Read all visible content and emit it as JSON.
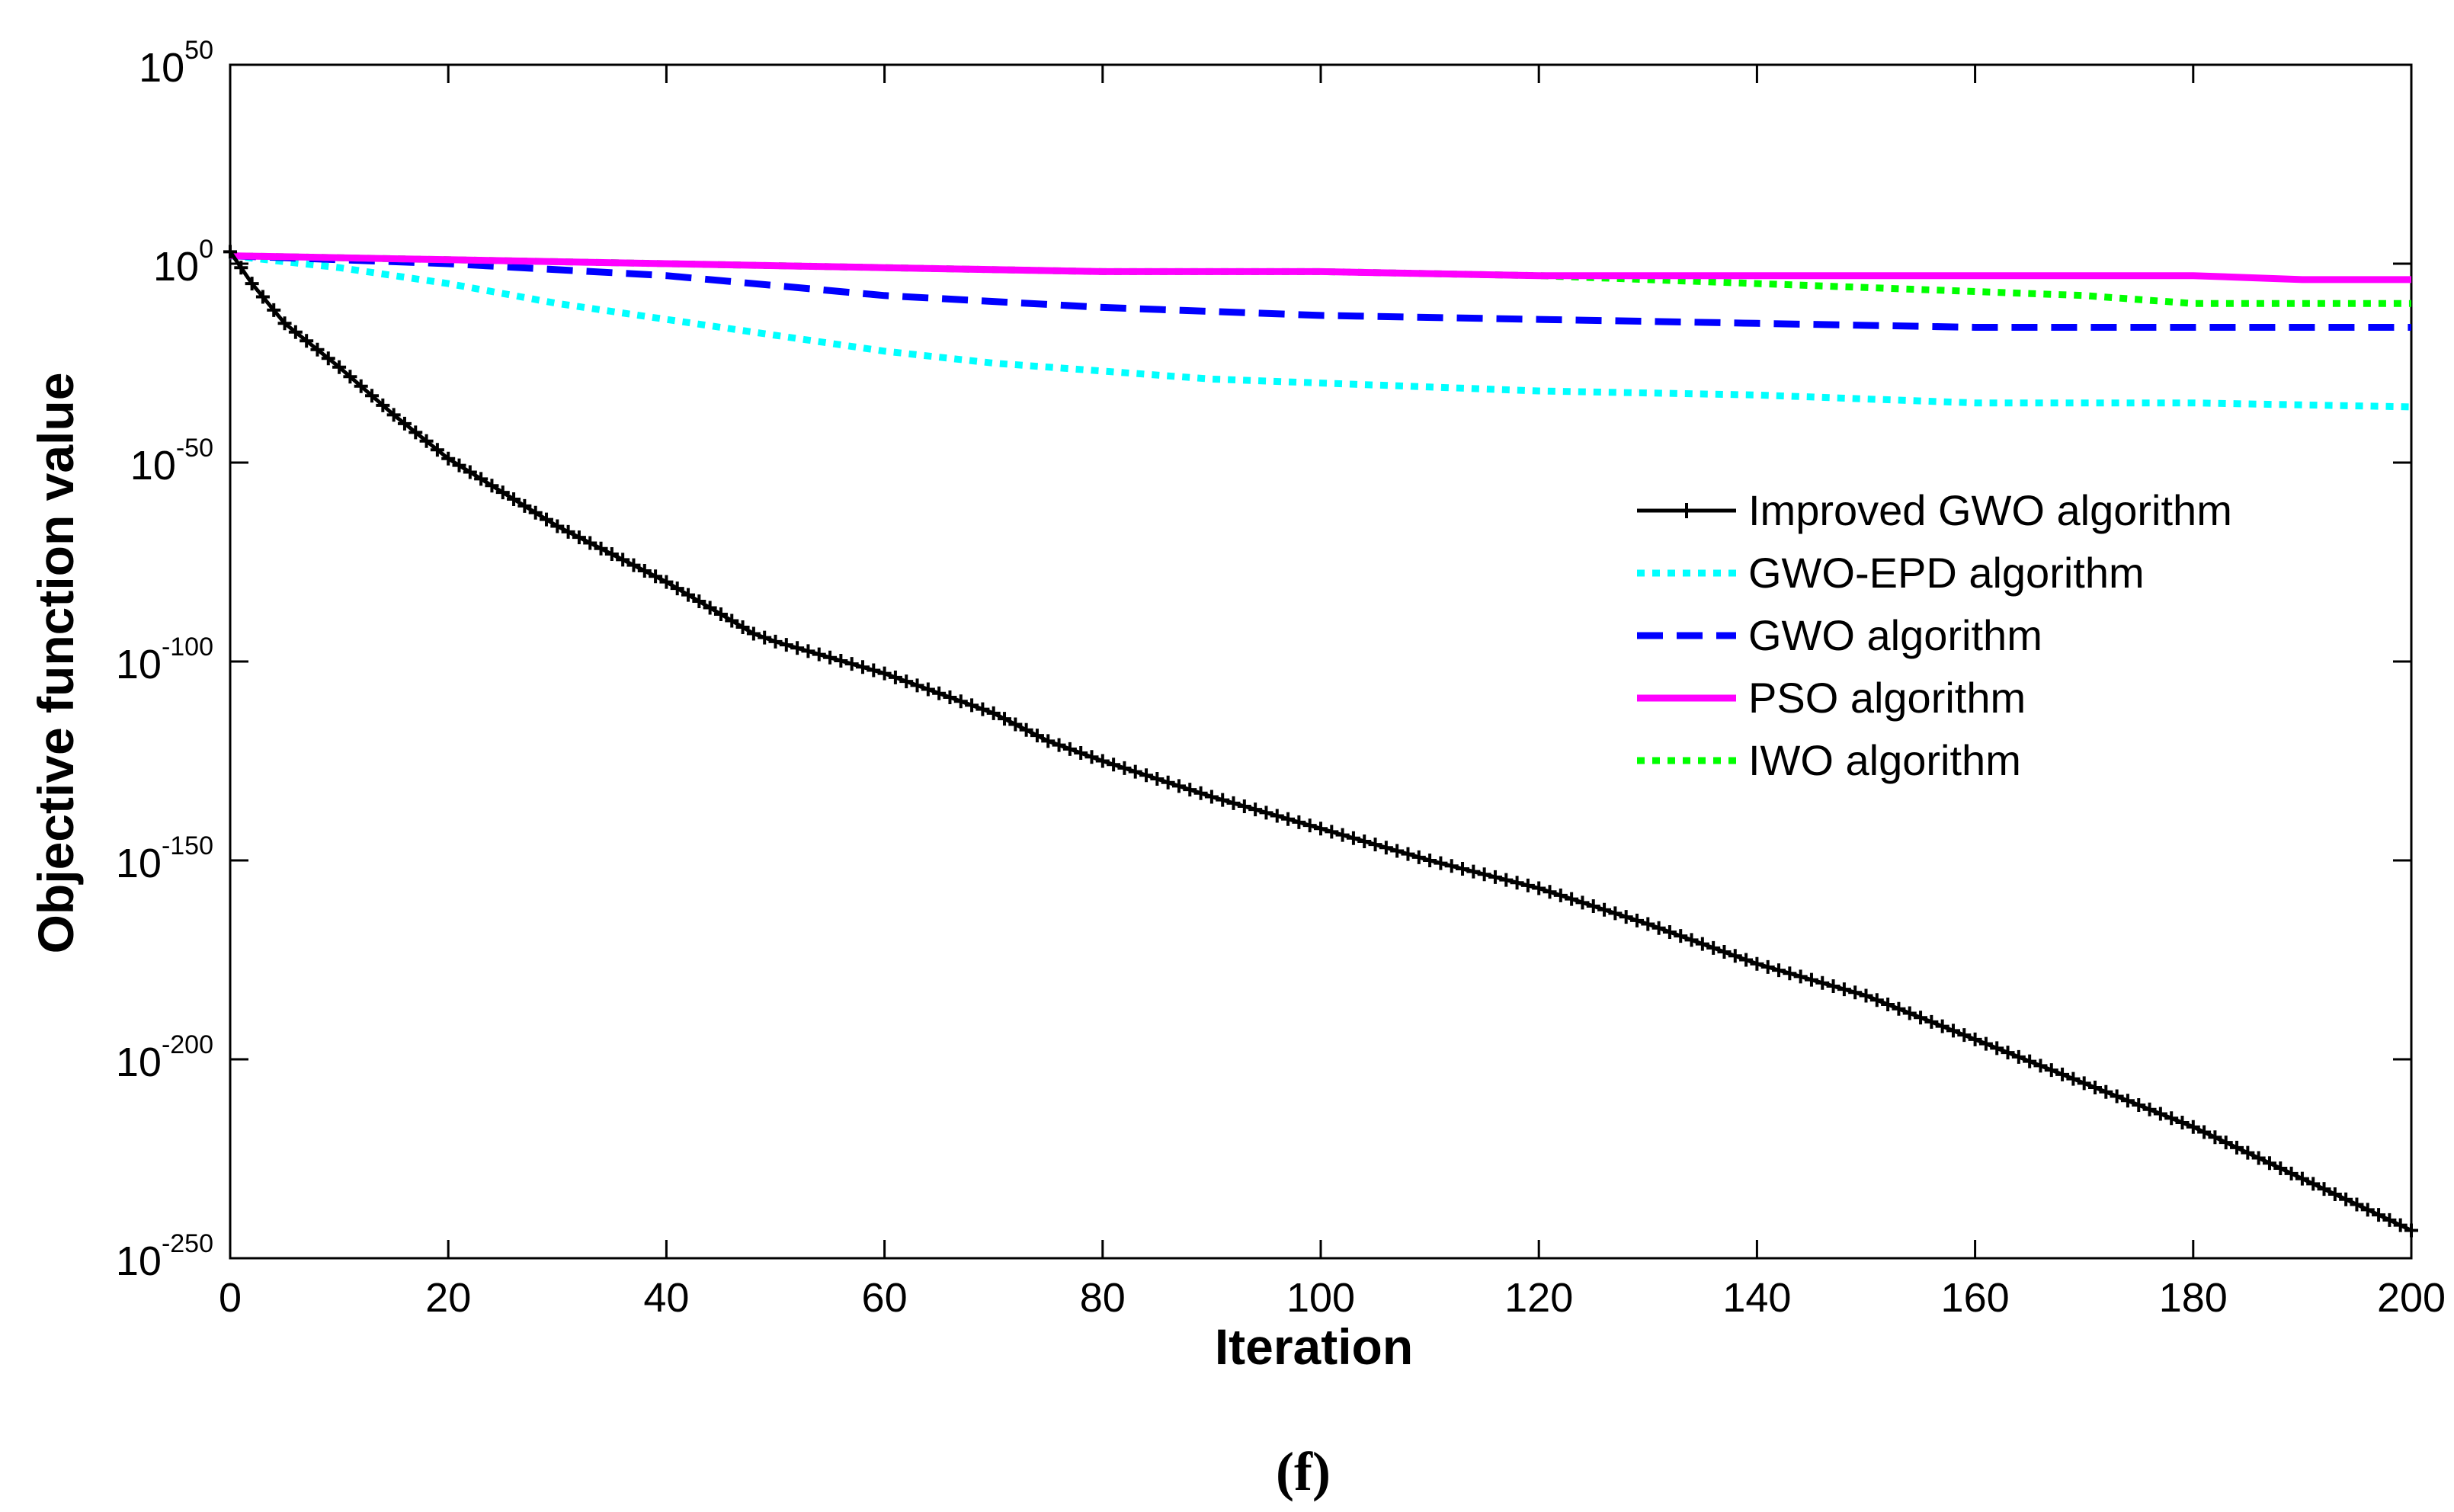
{
  "chart_data": {
    "type": "line",
    "yscale": "log",
    "xlabel": "Iteration",
    "ylabel": "Objective function value",
    "caption": "(f)",
    "xlim": [
      0,
      200
    ],
    "ylim_exponent": [
      -250,
      50
    ],
    "xticks": [
      "0",
      "20",
      "40",
      "60",
      "80",
      "100",
      "120",
      "140",
      "160",
      "180",
      "200"
    ],
    "yticks": [
      {
        "base": "10",
        "exp": "50"
      },
      {
        "base": "10",
        "exp": "0"
      },
      {
        "base": "10",
        "exp": "-50"
      },
      {
        "base": "10",
        "exp": "-100"
      },
      {
        "base": "10",
        "exp": "-150"
      },
      {
        "base": "10",
        "exp": "-200"
      },
      {
        "base": "10",
        "exp": "-250"
      }
    ],
    "legend_position": "right",
    "series": [
      {
        "name": "Improved GWO algorithm",
        "color": "#000000",
        "style": "solid-plus",
        "points": [
          [
            0,
            3
          ],
          [
            2,
            -5
          ],
          [
            5,
            -15
          ],
          [
            10,
            -26
          ],
          [
            15,
            -38
          ],
          [
            20,
            -49
          ],
          [
            30,
            -66
          ],
          [
            40,
            -80
          ],
          [
            48,
            -93
          ],
          [
            50,
            -95
          ],
          [
            60,
            -103
          ],
          [
            70,
            -113
          ],
          [
            75,
            -120
          ],
          [
            80,
            -125
          ],
          [
            90,
            -134
          ],
          [
            95,
            -138
          ],
          [
            100,
            -142
          ],
          [
            110,
            -150
          ],
          [
            120,
            -157
          ],
          [
            130,
            -166
          ],
          [
            140,
            -176
          ],
          [
            150,
            -184
          ],
          [
            160,
            -195
          ],
          [
            170,
            -206
          ],
          [
            180,
            -217
          ],
          [
            190,
            -230
          ],
          [
            200,
            -243
          ]
        ]
      },
      {
        "name": "GWO-EPD algorithm",
        "color": "#00ffff",
        "style": "dotted",
        "points": [
          [
            0,
            2
          ],
          [
            10,
            -1
          ],
          [
            20,
            -5
          ],
          [
            30,
            -10
          ],
          [
            40,
            -14
          ],
          [
            50,
            -18
          ],
          [
            60,
            -22
          ],
          [
            70,
            -25
          ],
          [
            80,
            -27
          ],
          [
            90,
            -29
          ],
          [
            100,
            -30
          ],
          [
            120,
            -32
          ],
          [
            140,
            -33
          ],
          [
            160,
            -35
          ],
          [
            180,
            -35
          ],
          [
            200,
            -36
          ]
        ]
      },
      {
        "name": "GWO algorithm",
        "color": "#0000ff",
        "style": "dashed",
        "points": [
          [
            0,
            2
          ],
          [
            20,
            0
          ],
          [
            40,
            -3
          ],
          [
            60,
            -8
          ],
          [
            80,
            -11
          ],
          [
            100,
            -13
          ],
          [
            120,
            -14
          ],
          [
            140,
            -15
          ],
          [
            160,
            -16
          ],
          [
            180,
            -16
          ],
          [
            200,
            -16
          ]
        ]
      },
      {
        "name": "PSO algorithm",
        "color": "#ff00ff",
        "style": "solid",
        "points": [
          [
            0,
            2
          ],
          [
            20,
            1
          ],
          [
            40,
            0
          ],
          [
            60,
            -1
          ],
          [
            80,
            -2
          ],
          [
            100,
            -2
          ],
          [
            120,
            -3
          ],
          [
            140,
            -3
          ],
          [
            160,
            -3
          ],
          [
            180,
            -3
          ],
          [
            190,
            -4
          ],
          [
            200,
            -4
          ]
        ]
      },
      {
        "name": "IWO algorithm",
        "color": "#00ff00",
        "style": "dotted",
        "points": [
          [
            0,
            2
          ],
          [
            20,
            1
          ],
          [
            40,
            0
          ],
          [
            60,
            -1
          ],
          [
            80,
            -2
          ],
          [
            100,
            -2
          ],
          [
            120,
            -3
          ],
          [
            140,
            -5
          ],
          [
            160,
            -7
          ],
          [
            170,
            -8
          ],
          [
            180,
            -10
          ],
          [
            200,
            -10
          ]
        ]
      }
    ]
  }
}
